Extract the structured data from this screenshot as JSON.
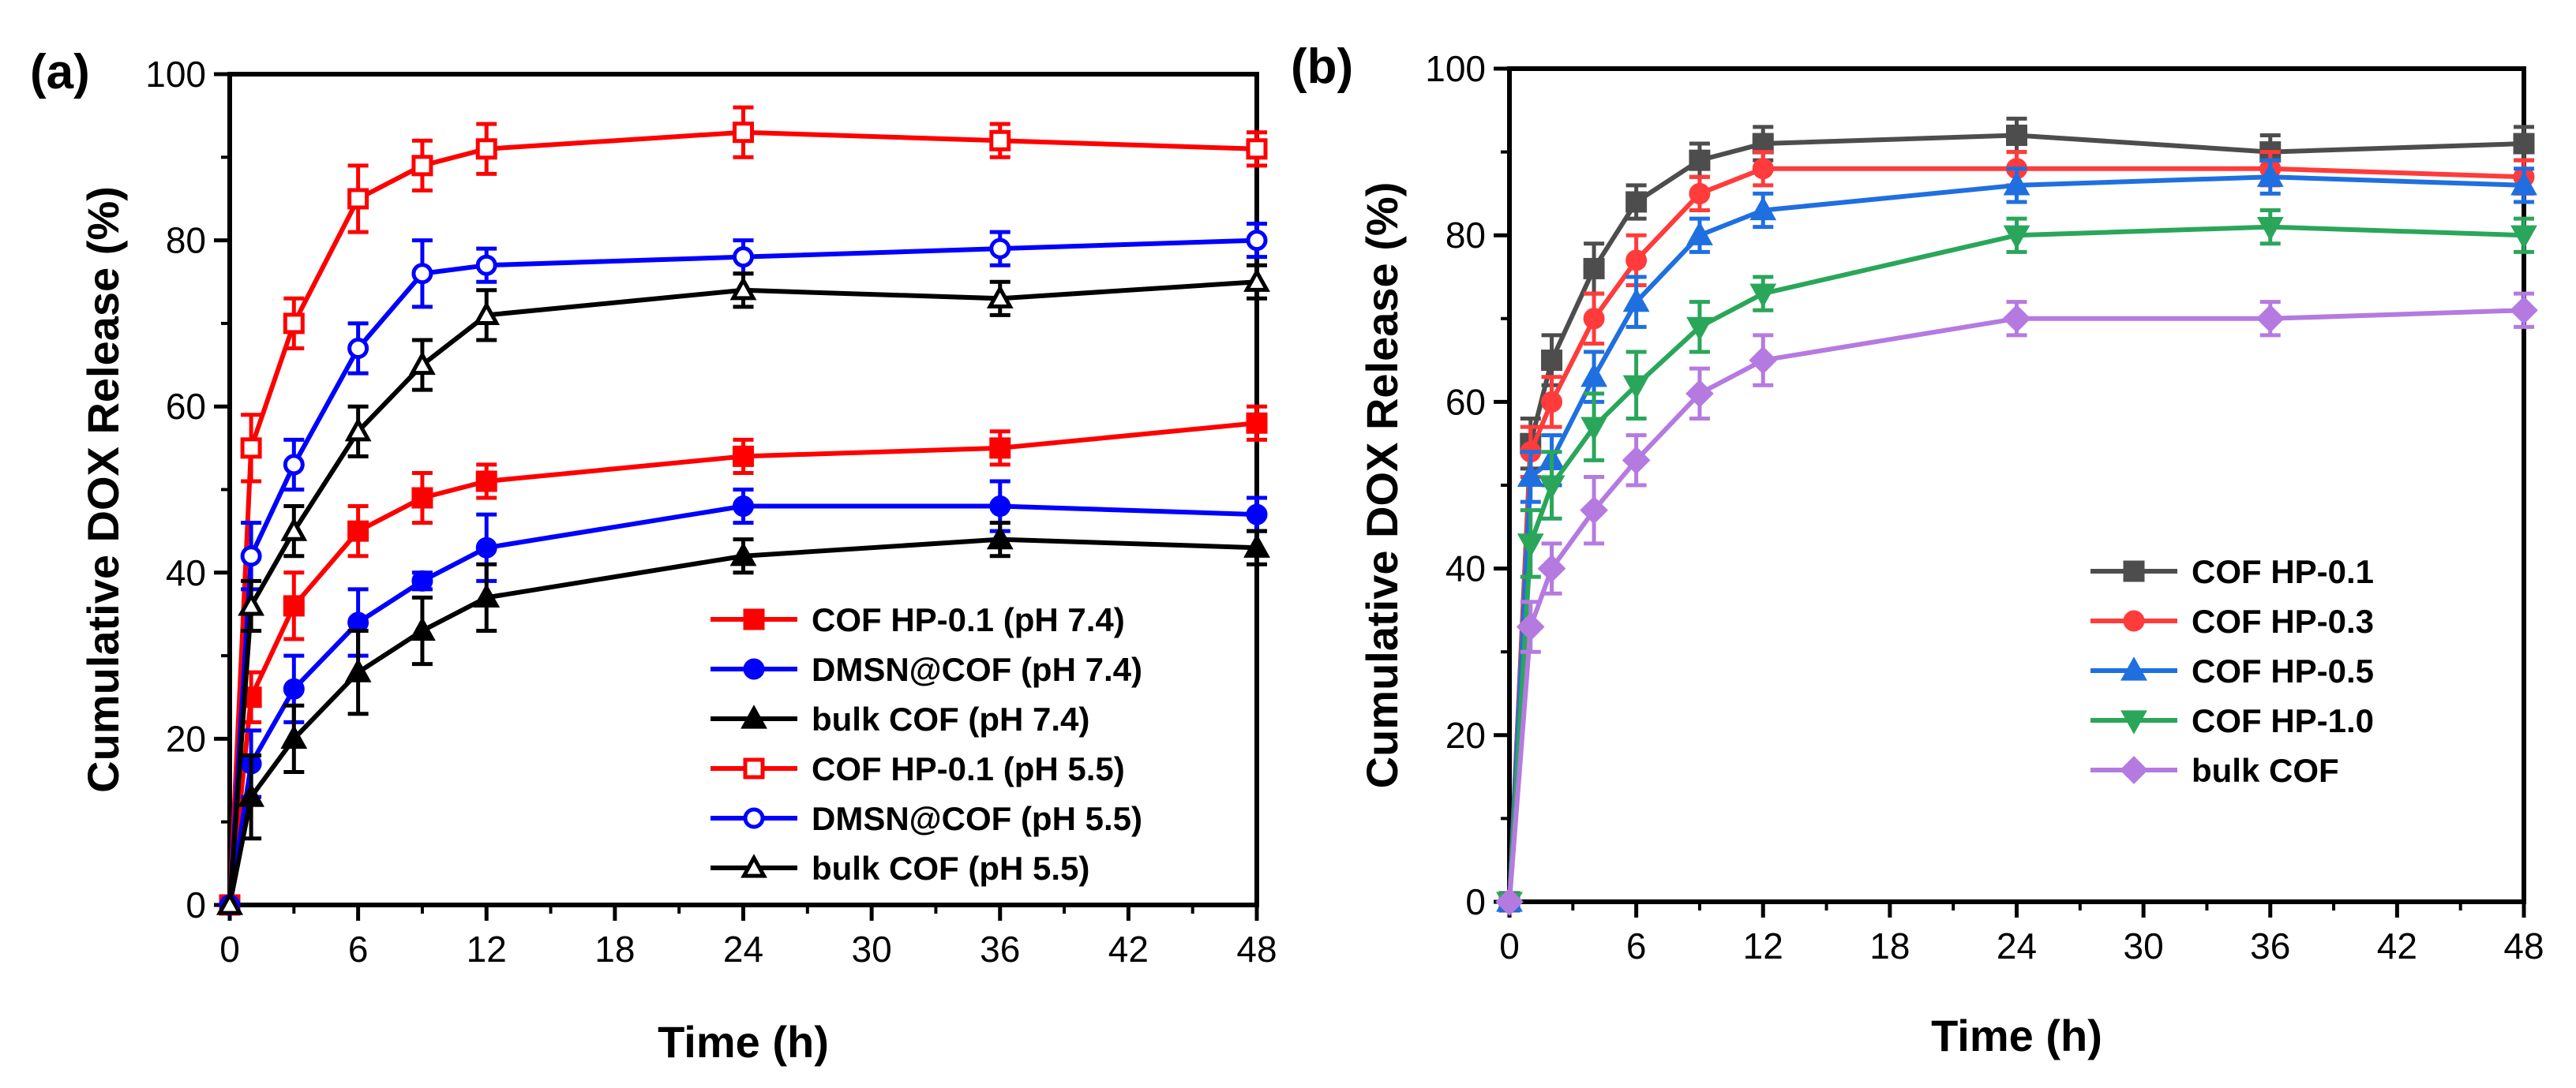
{
  "chart_data": [
    {
      "panel_label": "(a)",
      "type": "line",
      "xlabel": "Time (h)",
      "ylabel": "Cumulative DOX Release (%)",
      "xlim": [
        0,
        48
      ],
      "ylim": [
        0,
        100
      ],
      "xticks": [
        0,
        6,
        12,
        18,
        24,
        30,
        36,
        42,
        48
      ],
      "yticks": [
        0,
        20,
        40,
        60,
        80,
        100
      ],
      "legend_position": "bottom-right",
      "grid": false,
      "x": [
        0,
        1,
        3,
        6,
        9,
        12,
        24,
        36,
        48
      ],
      "series": [
        {
          "name": "COF HP-0.1 (pH 7.4)",
          "color": "#ff0000",
          "marker": "square",
          "filled": true,
          "values": [
            0,
            25,
            36,
            45,
            49,
            51,
            54,
            55,
            58
          ],
          "errors": [
            0,
            3,
            4,
            3,
            3,
            2,
            2,
            2,
            2
          ]
        },
        {
          "name": "DMSN@COF (pH 7.4)",
          "color": "#0000ff",
          "marker": "circle",
          "filled": true,
          "values": [
            0,
            17,
            26,
            34,
            39,
            43,
            48,
            48,
            47
          ],
          "errors": [
            0,
            4,
            4,
            4,
            1,
            4,
            2,
            3,
            2
          ]
        },
        {
          "name": "bulk COF (pH 7.4)",
          "color": "#000000",
          "marker": "triangle-up",
          "filled": true,
          "values": [
            0,
            13,
            20,
            28,
            33,
            37,
            42,
            44,
            43
          ],
          "errors": [
            0,
            5,
            4,
            5,
            4,
            4,
            2,
            2,
            2
          ]
        },
        {
          "name": "COF HP-0.1 (pH 5.5)",
          "color": "#ff0000",
          "marker": "square",
          "filled": false,
          "values": [
            0,
            55,
            70,
            85,
            89,
            91,
            93,
            92,
            91
          ],
          "errors": [
            0,
            4,
            3,
            4,
            3,
            3,
            3,
            2,
            2
          ]
        },
        {
          "name": "DMSN@COF (pH 5.5)",
          "color": "#0000ff",
          "marker": "circle",
          "filled": false,
          "values": [
            0,
            42,
            53,
            67,
            76,
            77,
            78,
            79,
            80
          ],
          "errors": [
            0,
            4,
            3,
            3,
            4,
            2,
            2,
            2,
            2
          ]
        },
        {
          "name": "bulk COF (pH 5.5)",
          "color": "#000000",
          "marker": "triangle-up",
          "filled": false,
          "values": [
            0,
            36,
            45,
            57,
            65,
            71,
            74,
            73,
            75
          ],
          "errors": [
            0,
            3,
            3,
            3,
            3,
            3,
            2,
            2,
            2
          ]
        }
      ]
    },
    {
      "panel_label": "(b)",
      "type": "line",
      "xlabel": "Time (h)",
      "ylabel": "Cumulative DOX Release (%)",
      "xlim": [
        0,
        48
      ],
      "ylim": [
        0,
        100
      ],
      "xticks": [
        0,
        6,
        12,
        18,
        24,
        30,
        36,
        42,
        48
      ],
      "yticks": [
        0,
        20,
        40,
        60,
        80,
        100
      ],
      "legend_position": "bottom-right",
      "grid": false,
      "x": [
        0,
        1,
        2,
        4,
        6,
        9,
        12,
        24,
        36,
        48
      ],
      "series": [
        {
          "name": "COF HP-0.1",
          "color": "#4d4d4d",
          "marker": "square",
          "filled": true,
          "values": [
            0,
            55,
            65,
            76,
            84,
            89,
            91,
            92,
            90,
            91
          ],
          "errors": [
            0,
            3,
            3,
            3,
            2,
            2,
            2,
            2,
            2,
            2
          ]
        },
        {
          "name": "COF HP-0.3",
          "color": "#ff3b3b",
          "marker": "circle",
          "filled": true,
          "values": [
            0,
            54,
            60,
            70,
            77,
            85,
            88,
            88,
            88,
            87
          ],
          "errors": [
            0,
            3,
            3,
            3,
            3,
            2,
            2,
            2,
            2,
            2
          ]
        },
        {
          "name": "COF HP-0.5",
          "color": "#1f6fe0",
          "marker": "triangle-up",
          "filled": true,
          "values": [
            0,
            51,
            53,
            63,
            72,
            80,
            83,
            86,
            87,
            86
          ],
          "errors": [
            0,
            3,
            3,
            3,
            3,
            2,
            2,
            2,
            2,
            2
          ]
        },
        {
          "name": "COF HP-1.0",
          "color": "#2aa65a",
          "marker": "triangle-down",
          "filled": true,
          "values": [
            0,
            43,
            50,
            57,
            62,
            69,
            73,
            80,
            81,
            80
          ],
          "errors": [
            0,
            4,
            4,
            4,
            4,
            3,
            2,
            2,
            2,
            2
          ]
        },
        {
          "name": "bulk COF",
          "color": "#b57ae0",
          "marker": "diamond",
          "filled": true,
          "values": [
            0,
            33,
            40,
            47,
            53,
            61,
            65,
            70,
            70,
            71
          ],
          "errors": [
            0,
            3,
            3,
            4,
            3,
            3,
            3,
            2,
            2,
            2
          ]
        }
      ]
    }
  ]
}
